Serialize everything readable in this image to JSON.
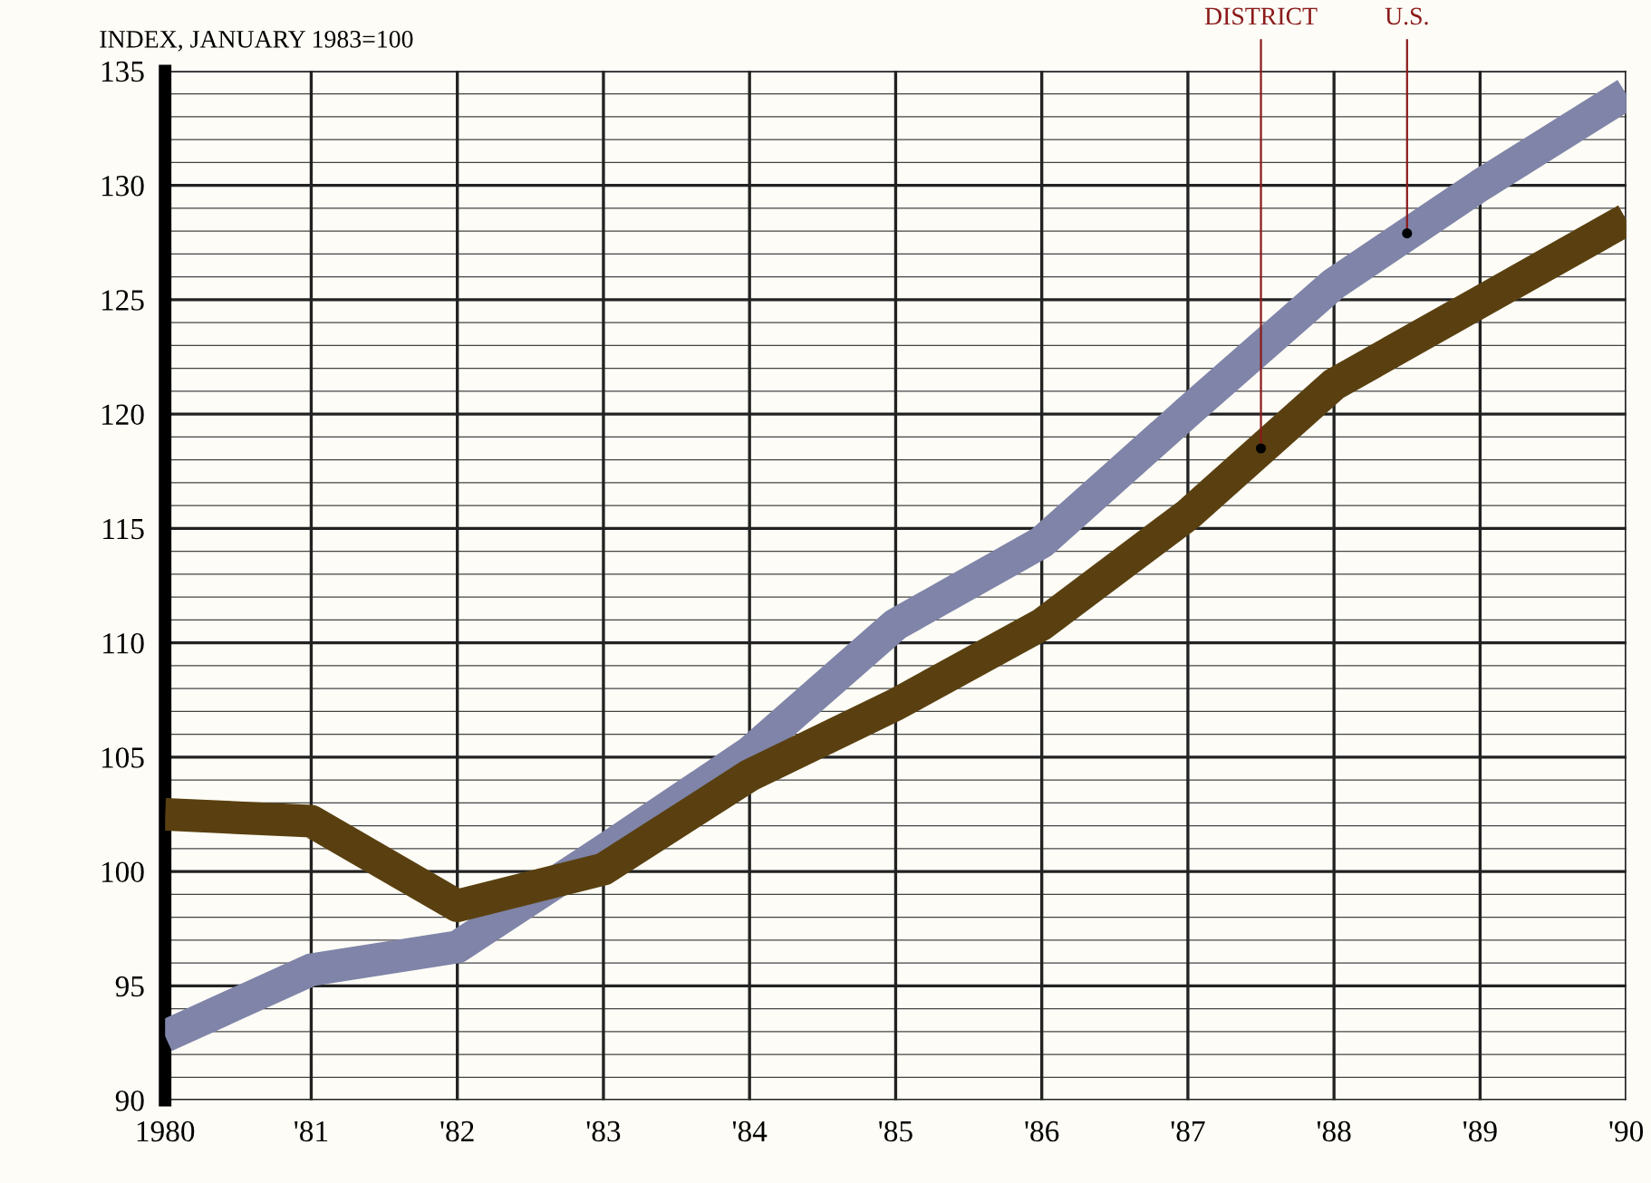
{
  "chart_data": {
    "type": "line",
    "ylabel": "INDEX, JANUARY 1983=100",
    "x": [
      1980,
      1981,
      1982,
      1983,
      1984,
      1985,
      1986,
      1987,
      1988,
      1989,
      1990
    ],
    "series": [
      {
        "color": "#7f84a8",
        "values": [
          92.8,
          95.7,
          96.7,
          100.9,
          105.2,
          110.8,
          114.4,
          120.1,
          125.7,
          130,
          134
        ]
      },
      {
        "color": "#5a4010",
        "values": [
          102.5,
          102.2,
          98.5,
          100.1,
          104.2,
          107.3,
          110.8,
          115.6,
          121.3,
          124.9,
          128.5
        ]
      }
    ],
    "annotations": [
      {
        "text": "DISTRICT",
        "x": 1987.5,
        "y": 118.5
      },
      {
        "text": "U.S.",
        "x": 1988.5,
        "y": 127.9
      }
    ],
    "xlim": [
      1980,
      1990
    ],
    "xticks": [
      {
        "value": 1980,
        "label": "1980"
      },
      {
        "value": 1981,
        "label": "'81"
      },
      {
        "value": 1982,
        "label": "'82"
      },
      {
        "value": 1983,
        "label": "'83"
      },
      {
        "value": 1984,
        "label": "'84"
      },
      {
        "value": 1985,
        "label": "'85"
      },
      {
        "value": 1986,
        "label": "'86"
      },
      {
        "value": 1987,
        "label": "'87"
      },
      {
        "value": 1988,
        "label": "'88"
      },
      {
        "value": 1989,
        "label": "'89"
      },
      {
        "value": 1990,
        "label": "'90"
      }
    ],
    "ylim": [
      90,
      135
    ],
    "yticks": [
      90,
      95,
      100,
      105,
      110,
      115,
      120,
      125,
      130,
      135
    ],
    "grid": true,
    "marker": "none",
    "line_style": "solid"
  }
}
